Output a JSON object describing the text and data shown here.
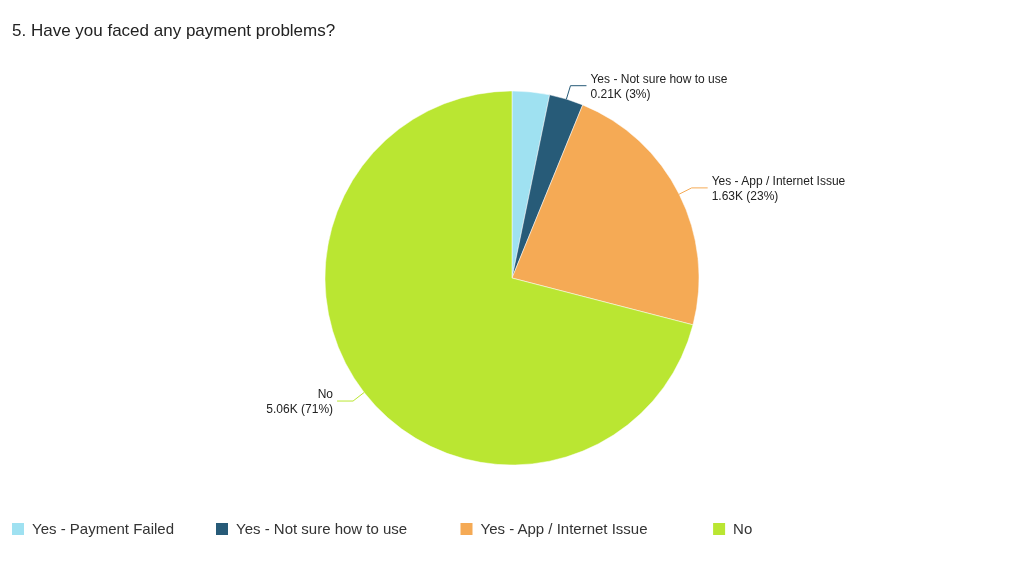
{
  "chart_data": {
    "type": "pie",
    "title": "5. Have you faced any payment problems?",
    "categories": [
      "Yes - Payment Failed",
      "Yes - Not sure how to use",
      "Yes - App / Internet Issue",
      "No"
    ],
    "values": [
      230,
      210,
      1630,
      5060
    ],
    "value_labels": [
      null,
      "0.21K (3%)",
      "1.63K (23%)",
      "5.06K (71%)"
    ],
    "colors": [
      "#9fe1f1",
      "#275b78",
      "#f5aa55",
      "#bae632"
    ],
    "legend": "bottom left"
  }
}
